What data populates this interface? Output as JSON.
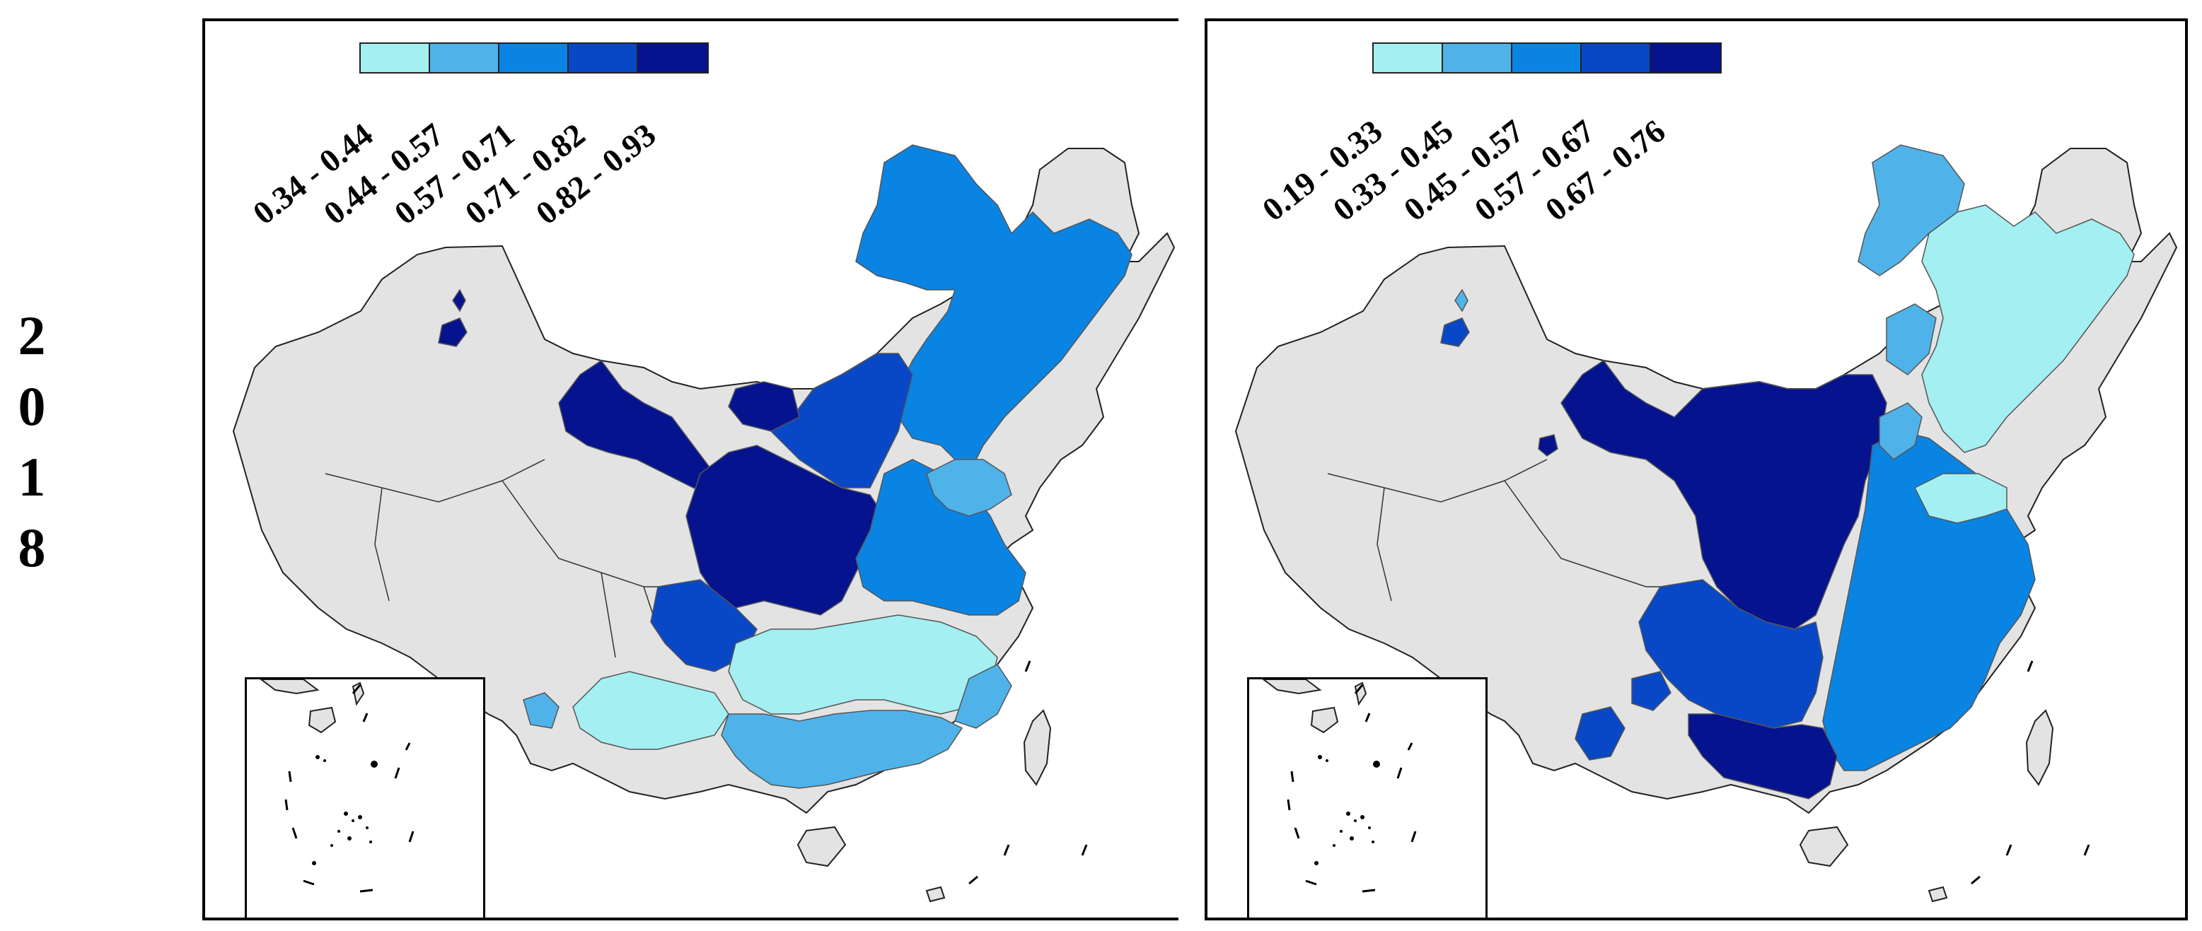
{
  "year": [
    "2",
    "0",
    "1",
    "8"
  ],
  "colors": {
    "no_data": "#e3e3e3",
    "border": "#555555"
  },
  "panels": [
    {
      "legend": [
        {
          "label": "0.34 - 0.44",
          "color": "#a3eff2"
        },
        {
          "label": "0.44 - 0.57",
          "color": "#4fb3ea"
        },
        {
          "label": "0.57 - 0.71",
          "color": "#0a84e3"
        },
        {
          "label": "0.71 - 0.82",
          "color": "#0848c6"
        },
        {
          "label": "0.82 - 0.93",
          "color": "#06138f"
        }
      ]
    },
    {
      "legend": [
        {
          "label": "0.19 - 0.33",
          "color": "#a3eff2"
        },
        {
          "label": "0.33 - 0.45",
          "color": "#4fb3ea"
        },
        {
          "label": "0.45 - 0.57",
          "color": "#0a84e3"
        },
        {
          "label": "0.57 - 0.67",
          "color": "#0848c6"
        },
        {
          "label": "0.67 - 0.76",
          "color": "#06138f"
        }
      ]
    }
  ]
}
